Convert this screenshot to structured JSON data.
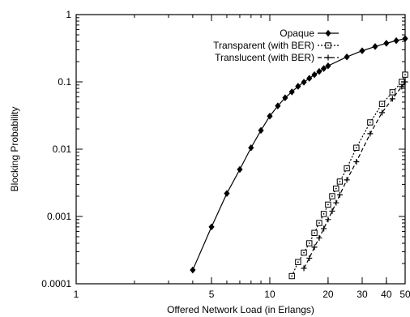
{
  "chart_data": {
    "type": "line",
    "title": "",
    "xlabel": "Offered Network Load (in Erlangs)",
    "ylabel": "Blocking Probability",
    "xscale": "log",
    "yscale": "log",
    "xlim": [
      1,
      50
    ],
    "ylim": [
      0.0001,
      1
    ],
    "x_ticks": [
      {
        "value": 1,
        "label": "1"
      },
      {
        "value": 5,
        "label": "5"
      },
      {
        "value": 10,
        "label": "10"
      },
      {
        "value": 20,
        "label": "20"
      },
      {
        "value": 30,
        "label": "30"
      },
      {
        "value": 40,
        "label": "40"
      },
      {
        "value": 50,
        "label": "50"
      }
    ],
    "y_ticks": [
      {
        "value": 0.0001,
        "label": "0.0001"
      },
      {
        "value": 0.001,
        "label": "0.001"
      },
      {
        "value": 0.01,
        "label": "0.01"
      },
      {
        "value": 0.1,
        "label": "0.1"
      },
      {
        "value": 1,
        "label": "1"
      }
    ],
    "grid": false,
    "legend_position": "top-right",
    "series": [
      {
        "name": "Opaque",
        "marker": "diamond",
        "line": "solid",
        "color": "#000000",
        "points": [
          [
            4,
            0.00016
          ],
          [
            5,
            0.0007
          ],
          [
            6,
            0.0022
          ],
          [
            7,
            0.005
          ],
          [
            8,
            0.0105
          ],
          [
            9,
            0.019
          ],
          [
            10,
            0.031
          ],
          [
            11,
            0.044
          ],
          [
            12,
            0.058
          ],
          [
            13,
            0.071
          ],
          [
            14,
            0.086
          ],
          [
            15,
            0.099
          ],
          [
            16,
            0.113
          ],
          [
            17,
            0.128
          ],
          [
            18,
            0.143
          ],
          [
            19,
            0.158
          ],
          [
            20,
            0.173
          ],
          [
            25,
            0.235
          ],
          [
            30,
            0.29
          ],
          [
            35,
            0.335
          ],
          [
            40,
            0.375
          ],
          [
            45,
            0.41
          ],
          [
            50,
            0.44
          ]
        ]
      },
      {
        "name": "Transparent (with BER)",
        "marker": "square-dot",
        "line": "dotted",
        "color": "#000000",
        "points": [
          [
            13,
            0.00013
          ],
          [
            14,
            0.00021
          ],
          [
            15,
            0.00029
          ],
          [
            16,
            0.0004
          ],
          [
            17,
            0.00057
          ],
          [
            18,
            0.0008
          ],
          [
            19,
            0.00109
          ],
          [
            20,
            0.0015
          ],
          [
            21,
            0.002
          ],
          [
            22,
            0.0026
          ],
          [
            23,
            0.0033
          ],
          [
            25,
            0.0052
          ],
          [
            28,
            0.0105
          ],
          [
            33,
            0.025
          ],
          [
            38,
            0.047
          ],
          [
            43,
            0.07
          ],
          [
            48,
            0.1
          ],
          [
            50,
            0.128
          ]
        ]
      },
      {
        "name": "Translucent (with BER)",
        "marker": "plus",
        "line": "dashed",
        "color": "#000000",
        "points": [
          [
            15,
            0.00017
          ],
          [
            16,
            0.00024
          ],
          [
            17,
            0.00035
          ],
          [
            18,
            0.00048
          ],
          [
            19,
            0.00066
          ],
          [
            20,
            0.0009
          ],
          [
            21,
            0.0012
          ],
          [
            22,
            0.0016
          ],
          [
            23,
            0.0021
          ],
          [
            25,
            0.0035
          ],
          [
            28,
            0.0065
          ],
          [
            33,
            0.017
          ],
          [
            38,
            0.035
          ],
          [
            43,
            0.056
          ],
          [
            48,
            0.085
          ],
          [
            50,
            0.1
          ]
        ]
      }
    ]
  }
}
